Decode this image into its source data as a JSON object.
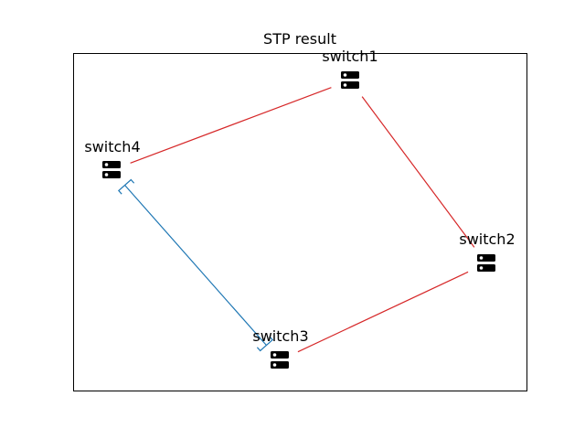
{
  "diagram": {
    "title": "STP result",
    "nodes": [
      {
        "id": "switch1",
        "label": "switch1",
        "icon": "server-icon"
      },
      {
        "id": "switch2",
        "label": "switch2",
        "icon": "server-icon"
      },
      {
        "id": "switch3",
        "label": "switch3",
        "icon": "server-icon"
      },
      {
        "id": "switch4",
        "label": "switch4",
        "icon": "server-icon"
      }
    ],
    "links": [
      {
        "from": "switch4",
        "to": "switch1",
        "state": "forwarding"
      },
      {
        "from": "switch1",
        "to": "switch2",
        "state": "forwarding"
      },
      {
        "from": "switch2",
        "to": "switch3",
        "state": "forwarding"
      },
      {
        "from": "switch3",
        "to": "switch4",
        "state": "blocked"
      }
    ],
    "colors": {
      "forwarding": "#d62728",
      "blocked": "#1f77b4",
      "frame": "#000000",
      "icon": "#000000"
    }
  }
}
